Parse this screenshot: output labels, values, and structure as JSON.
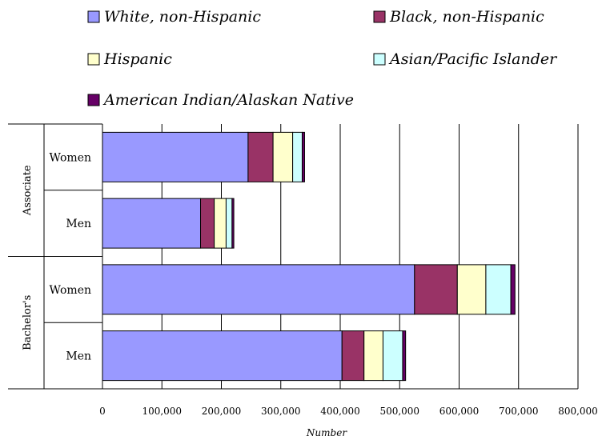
{
  "chart_data": {
    "type": "bar",
    "orientation": "horizontal",
    "stacked": true,
    "xlabel": "Number",
    "xlim": [
      0,
      800000
    ],
    "xticks": [
      0,
      100000,
      200000,
      300000,
      400000,
      500000,
      600000,
      700000,
      800000
    ],
    "xtick_labels": [
      "0",
      "100,000",
      "200,000",
      "300,000",
      "400,000",
      "500,000",
      "600,000",
      "700,000",
      "800,000"
    ],
    "grid": "vertical",
    "legend_position": "top",
    "groups": [
      {
        "label": "Associate",
        "categories": [
          "Women",
          "Men"
        ]
      },
      {
        "label": "Bachelor's",
        "categories": [
          "Women",
          "Men"
        ]
      }
    ],
    "categories": [
      "Associate Women",
      "Associate Men",
      "Bachelor's Women",
      "Bachelor's Men"
    ],
    "series": [
      {
        "name": "White, non-Hispanic",
        "color": "#9999ff",
        "values": [
          245000,
          165000,
          525000,
          403000
        ]
      },
      {
        "name": "Black, non-Hispanic",
        "color": "#993366",
        "values": [
          42000,
          23000,
          72000,
          37000
        ]
      },
      {
        "name": "Hispanic",
        "color": "#ffffcc",
        "values": [
          33000,
          20000,
          48000,
          32000
        ]
      },
      {
        "name": "Asian/Pacific Islander",
        "color": "#ccffff",
        "values": [
          16000,
          10000,
          42000,
          33000
        ]
      },
      {
        "name": "American Indian/Alaskan Native",
        "color": "#660066",
        "values": [
          4000,
          3000,
          7000,
          5000
        ]
      }
    ]
  }
}
